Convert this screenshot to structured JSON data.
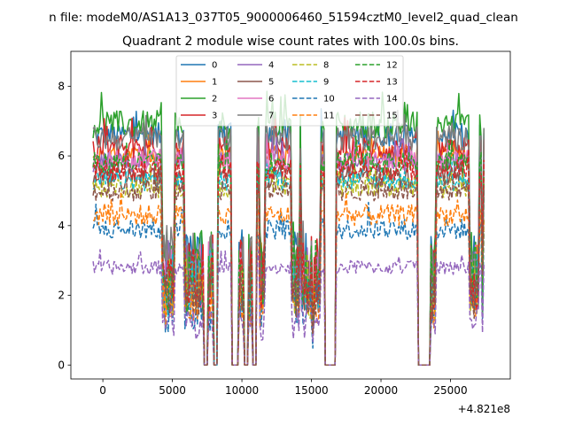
{
  "figure": {
    "suptitle": "n file: modeM0/AS1A13_037T05_9000006460_51594cztM0_level2_quad_clean",
    "title": "Quadrant 2 module wise count rates with 100.0s bins.",
    "offset_label": "+4.821e8"
  },
  "chart_data": {
    "type": "line",
    "title": "Quadrant 2 module wise count rates with 100.0s bins.",
    "xlim": [
      -2300,
      29300
    ],
    "ylim": [
      -0.4,
      9.0
    ],
    "x_ticks": [
      0,
      5000,
      10000,
      15000,
      20000,
      25000
    ],
    "x_tick_labels": [
      "0",
      "5000",
      "10000",
      "15000",
      "20000",
      "25000"
    ],
    "y_ticks": [
      0,
      2,
      4,
      6,
      8
    ],
    "y_tick_labels": [
      "0",
      "2",
      "4",
      "6",
      "8"
    ],
    "x_offset": "+4.821e8",
    "grid": false,
    "legend_position": "top-center",
    "x_range": [
      -700,
      27400
    ],
    "bin_seconds": 100,
    "gaps": [
      [
        4250,
        5200,
        "dip"
      ],
      [
        5900,
        7300,
        "dip"
      ],
      [
        7300,
        7600,
        "zero"
      ],
      [
        7600,
        8000,
        "dip"
      ],
      [
        8000,
        8300,
        "zero"
      ],
      [
        9300,
        9800,
        "zero"
      ],
      [
        9800,
        10200,
        "dip"
      ],
      [
        10200,
        10500,
        "zero"
      ],
      [
        10500,
        10800,
        "dip"
      ],
      [
        10800,
        11100,
        "zero"
      ],
      [
        11300,
        11700,
        "dip"
      ],
      [
        13600,
        14200,
        "dip"
      ],
      [
        14300,
        15200,
        "dip"
      ],
      [
        15100,
        15700,
        "dip"
      ],
      [
        16000,
        16800,
        "zero"
      ],
      [
        22700,
        23600,
        "zero"
      ],
      [
        23600,
        24000,
        "dip"
      ],
      [
        26400,
        27100,
        "dip"
      ],
      [
        27300,
        27400,
        "dip"
      ]
    ],
    "series": [
      {
        "name": "0",
        "color": "#1f77b4",
        "dash": "solid",
        "level": 6.6,
        "noise": 0.35
      },
      {
        "name": "1",
        "color": "#ff7f0e",
        "dash": "solid",
        "level": 6.0,
        "noise": 0.3
      },
      {
        "name": "2",
        "color": "#2ca02c",
        "dash": "solid",
        "level": 6.9,
        "noise": 0.4
      },
      {
        "name": "3",
        "color": "#d62728",
        "dash": "solid",
        "level": 6.2,
        "noise": 0.35
      },
      {
        "name": "4",
        "color": "#9467bd",
        "dash": "solid",
        "level": 5.8,
        "noise": 0.3
      },
      {
        "name": "5",
        "color": "#8c564b",
        "dash": "solid",
        "level": 5.4,
        "noise": 0.3
      },
      {
        "name": "6",
        "color": "#e377c2",
        "dash": "solid",
        "level": 5.9,
        "noise": 0.3
      },
      {
        "name": "7",
        "color": "#7f7f7f",
        "dash": "solid",
        "level": 6.5,
        "noise": 0.35
      },
      {
        "name": "8",
        "color": "#bcbd22",
        "dash": "dashed",
        "level": 5.1,
        "noise": 0.3
      },
      {
        "name": "9",
        "color": "#17becf",
        "dash": "dashed",
        "level": 5.3,
        "noise": 0.3
      },
      {
        "name": "10",
        "color": "#1f77b4",
        "dash": "dashed",
        "level": 3.9,
        "noise": 0.3
      },
      {
        "name": "11",
        "color": "#ff7f0e",
        "dash": "dashed",
        "level": 4.3,
        "noise": 0.3
      },
      {
        "name": "12",
        "color": "#2ca02c",
        "dash": "dashed",
        "level": 5.8,
        "noise": 0.3
      },
      {
        "name": "13",
        "color": "#d62728",
        "dash": "dashed",
        "level": 5.6,
        "noise": 0.3
      },
      {
        "name": "14",
        "color": "#9467bd",
        "dash": "dashed",
        "level": 2.8,
        "noise": 0.2
      },
      {
        "name": "15",
        "color": "#8c564b",
        "dash": "dashed",
        "level": 5.0,
        "noise": 0.3
      }
    ]
  }
}
